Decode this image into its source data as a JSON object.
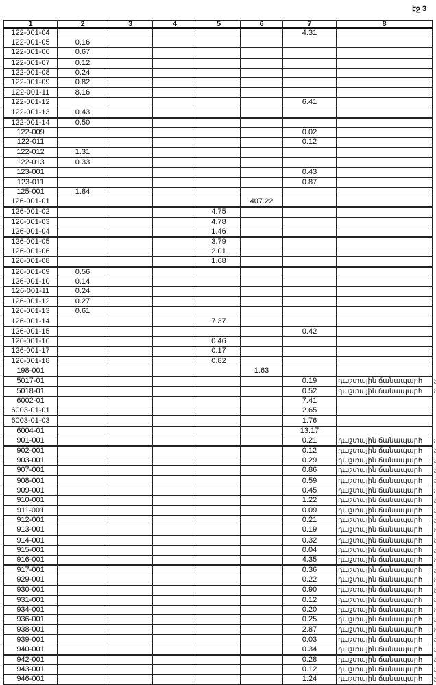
{
  "page_number": "էջ 3",
  "columns": [
    "1",
    "2",
    "3",
    "4",
    "5",
    "6",
    "7",
    "8"
  ],
  "road_label": "դաշտային ճանապարհ",
  "margin_mark": "չմ",
  "rows": [
    [
      "122-001-04",
      "",
      "",
      "",
      "",
      "",
      "4.31",
      ""
    ],
    [
      "122-001-05",
      "0.16",
      "",
      "",
      "",
      "",
      "",
      ""
    ],
    [
      "122-001-06",
      "0.67",
      "",
      "",
      "",
      "",
      "",
      ""
    ],
    [
      "122-001-07",
      "0.12",
      "",
      "",
      "",
      "",
      "",
      ""
    ],
    [
      "122-001-08",
      "0.24",
      "",
      "",
      "",
      "",
      "",
      ""
    ],
    [
      "122-001-09",
      "0.82",
      "",
      "",
      "",
      "",
      "",
      ""
    ],
    [
      "122-001-11",
      "8.16",
      "",
      "",
      "",
      "",
      "",
      ""
    ],
    [
      "122-001-12",
      "",
      "",
      "",
      "",
      "",
      "6.41",
      ""
    ],
    [
      "122-001-13",
      "0.43",
      "",
      "",
      "",
      "",
      "",
      ""
    ],
    [
      "122-001-14",
      "0.50",
      "",
      "",
      "",
      "",
      "",
      ""
    ],
    [
      "122-009",
      "",
      "",
      "",
      "",
      "",
      "0.02",
      ""
    ],
    [
      "122-011",
      "",
      "",
      "",
      "",
      "",
      "0.12",
      ""
    ],
    [
      "122-012",
      "1.31",
      "",
      "",
      "",
      "",
      "",
      ""
    ],
    [
      "122-013",
      "0.33",
      "",
      "",
      "",
      "",
      "",
      ""
    ],
    [
      "123-001",
      "",
      "",
      "",
      "",
      "",
      "0.43",
      ""
    ],
    [
      "123-011",
      "",
      "",
      "",
      "",
      "",
      "0.87",
      ""
    ],
    [
      "125-001",
      "1.84",
      "",
      "",
      "",
      "",
      "",
      ""
    ],
    [
      "126-001-01",
      "",
      "",
      "",
      "",
      "407.22",
      "",
      ""
    ],
    [
      "126-001-02",
      "",
      "",
      "",
      "4.75",
      "",
      "",
      ""
    ],
    [
      "126-001-03",
      "",
      "",
      "",
      "4.78",
      "",
      "",
      ""
    ],
    [
      "126-001-04",
      "",
      "",
      "",
      "1.46",
      "",
      "",
      ""
    ],
    [
      "126-001-05",
      "",
      "",
      "",
      "3.79",
      "",
      "",
      ""
    ],
    [
      "126-001-06",
      "",
      "",
      "",
      "2.01",
      "",
      "",
      ""
    ],
    [
      "126-001-08",
      "",
      "",
      "",
      "1.68",
      "",
      "",
      ""
    ],
    [
      "126-001-09",
      "0.56",
      "",
      "",
      "",
      "",
      "",
      ""
    ],
    [
      "126-001-10",
      "0.14",
      "",
      "",
      "",
      "",
      "",
      ""
    ],
    [
      "126-001-11",
      "0.24",
      "",
      "",
      "",
      "",
      "",
      ""
    ],
    [
      "126-001-12",
      "0.27",
      "",
      "",
      "",
      "",
      "",
      ""
    ],
    [
      "126-001-13",
      "0.61",
      "",
      "",
      "",
      "",
      "",
      ""
    ],
    [
      "126-001-14",
      "",
      "",
      "",
      "7.37",
      "",
      "",
      ""
    ],
    [
      "126-001-15",
      "",
      "",
      "",
      "",
      "",
      "0.42",
      ""
    ],
    [
      "126-001-16",
      "",
      "",
      "",
      "0.46",
      "",
      "",
      ""
    ],
    [
      "126-001-17",
      "",
      "",
      "",
      "0.17",
      "",
      "",
      ""
    ],
    [
      "126-001-18",
      "",
      "",
      "",
      "0.82",
      "",
      "",
      ""
    ],
    [
      "198-001",
      "",
      "",
      "",
      "",
      "1.63",
      "",
      ""
    ],
    [
      "5017-01",
      "",
      "",
      "",
      "",
      "",
      "0.19",
      "դաշտային ճանապարհ"
    ],
    [
      "5018-01",
      "",
      "",
      "",
      "",
      "",
      "0.52",
      "դաշտային ճանապարհ"
    ],
    [
      "6002-01",
      "",
      "",
      "",
      "",
      "",
      "7.41",
      ""
    ],
    [
      "6003-01-01",
      "",
      "",
      "",
      "",
      "",
      "2.65",
      ""
    ],
    [
      "6003-01-03",
      "",
      "",
      "",
      "",
      "",
      "1.76",
      ""
    ],
    [
      "6004-01",
      "",
      "",
      "",
      "",
      "",
      "13.17",
      ""
    ],
    [
      "901-001",
      "",
      "",
      "",
      "",
      "",
      "0.21",
      "դաշտային ճանապարհ"
    ],
    [
      "902-001",
      "",
      "",
      "",
      "",
      "",
      "0.12",
      "դաշտային ճանապարհ"
    ],
    [
      "903-001",
      "",
      "",
      "",
      "",
      "",
      "0.29",
      "դաշտային ճանապարհ"
    ],
    [
      "907-001",
      "",
      "",
      "",
      "",
      "",
      "0.86",
      "դաշտային ճանապարհ"
    ],
    [
      "908-001",
      "",
      "",
      "",
      "",
      "",
      "0.59",
      "դաշտային ճանապարհ"
    ],
    [
      "909-001",
      "",
      "",
      "",
      "",
      "",
      "0.45",
      "դաշտային ճանապարհ"
    ],
    [
      "910-001",
      "",
      "",
      "",
      "",
      "",
      "1.22",
      "դաշտային ճանապարհ"
    ],
    [
      "911-001",
      "",
      "",
      "",
      "",
      "",
      "0.09",
      "դաշտային ճանապարհ"
    ],
    [
      "912-001",
      "",
      "",
      "",
      "",
      "",
      "0.21",
      "դաշտային ճանապարհ"
    ],
    [
      "913-001",
      "",
      "",
      "",
      "",
      "",
      "0.19",
      "դաշտային ճանապարհ"
    ],
    [
      "914-001",
      "",
      "",
      "",
      "",
      "",
      "0.32",
      "դաշտային ճանապարհ"
    ],
    [
      "915-001",
      "",
      "",
      "",
      "",
      "",
      "0.04",
      "դաշտային ճանապարհ"
    ],
    [
      "916-001",
      "",
      "",
      "",
      "",
      "",
      "4.35",
      "դաշտային ճանապարհ"
    ],
    [
      "917-001",
      "",
      "",
      "",
      "",
      "",
      "0.36",
      "դաշտային ճանապարհ"
    ],
    [
      "929-001",
      "",
      "",
      "",
      "",
      "",
      "0.22",
      "դաշտային ճանապարհ"
    ],
    [
      "930-001",
      "",
      "",
      "",
      "",
      "",
      "0.90",
      "դաշտային ճանապարհ"
    ],
    [
      "931-001",
      "",
      "",
      "",
      "",
      "",
      "0.12",
      "դաշտային ճանապարհ"
    ],
    [
      "934-001",
      "",
      "",
      "",
      "",
      "",
      "0.20",
      "դաշտային ճանապարհ"
    ],
    [
      "936-001",
      "",
      "",
      "",
      "",
      "",
      "0.25",
      "դաշտային ճանապարհ"
    ],
    [
      "938-001",
      "",
      "",
      "",
      "",
      "",
      "2.87",
      "դաշտային ճանապարհ"
    ],
    [
      "939-001",
      "",
      "",
      "",
      "",
      "",
      "0.03",
      "դաշտային ճանապարհ"
    ],
    [
      "940-001",
      "",
      "",
      "",
      "",
      "",
      "0.34",
      "դաշտային ճանապարհ"
    ],
    [
      "942-001",
      "",
      "",
      "",
      "",
      "",
      "0.28",
      "դաշտային ճանապարհ"
    ],
    [
      "943-001",
      "",
      "",
      "",
      "",
      "",
      "0.12",
      "դաշտային ճանապարհ"
    ],
    [
      "946-001",
      "",
      "",
      "",
      "",
      "",
      "1.24",
      "դաշտային ճանապարհ"
    ]
  ]
}
